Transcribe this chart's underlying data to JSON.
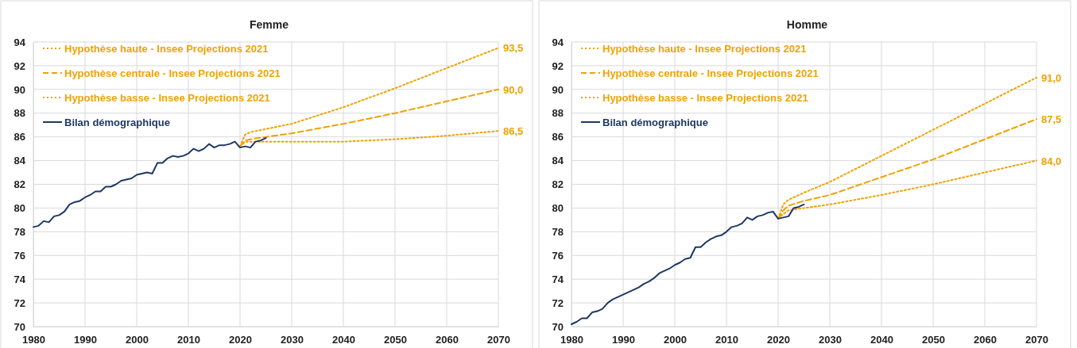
{
  "chart_data": [
    {
      "type": "line",
      "title": "Femme",
      "xlim": [
        1980,
        2070
      ],
      "xticks": [
        1980,
        1990,
        2000,
        2010,
        2020,
        2030,
        2040,
        2050,
        2060,
        2070
      ],
      "ylim": [
        70,
        94
      ],
      "yticks": [
        70,
        72,
        74,
        76,
        78,
        80,
        82,
        84,
        86,
        88,
        90,
        92,
        94
      ],
      "grid": true,
      "legend": "top left",
      "marker": "none",
      "series": [
        {
          "name": "Hypothèse haute - Insee Projections 2021",
          "color": "#f0a202",
          "line_style": "dotted",
          "x": [
            2020,
            2021,
            2022,
            2030,
            2040,
            2050,
            2060,
            2070
          ],
          "values": [
            85.2,
            86.2,
            86.4,
            87.1,
            88.5,
            90.1,
            91.8,
            93.5
          ],
          "value_labels": [
            null,
            null,
            null,
            null,
            null,
            null,
            null,
            "93,5"
          ]
        },
        {
          "name": "Hypothèse centrale - Insee Projections 2021",
          "color": "#f0a202",
          "line_style": "dashed",
          "x": [
            2020,
            2021,
            2022,
            2025,
            2030,
            2040,
            2050,
            2060,
            2070
          ],
          "values": [
            85.2,
            85.7,
            85.8,
            86.0,
            86.3,
            87.1,
            88.0,
            89.0,
            90.0
          ],
          "value_labels": [
            null,
            null,
            null,
            null,
            null,
            null,
            null,
            null,
            "90,0"
          ]
        },
        {
          "name": "Hypothèse basse - Insee Projections 2021",
          "color": "#f0a202",
          "line_style": "dotted",
          "x": [
            2020,
            2021,
            2022,
            2030,
            2040,
            2050,
            2060,
            2070
          ],
          "values": [
            85.2,
            85.6,
            85.6,
            85.6,
            85.6,
            85.8,
            86.1,
            86.5
          ],
          "value_labels": [
            null,
            null,
            null,
            null,
            null,
            null,
            null,
            "86,5"
          ]
        },
        {
          "name": "Bilan démographique",
          "color": "#1f3864",
          "line_style": "solid",
          "x": [
            1980,
            1981,
            1982,
            1983,
            1984,
            1985,
            1986,
            1987,
            1988,
            1989,
            1990,
            1991,
            1992,
            1993,
            1994,
            1995,
            1996,
            1997,
            1998,
            1999,
            2000,
            2001,
            2002,
            2003,
            2004,
            2005,
            2006,
            2007,
            2008,
            2009,
            2010,
            2011,
            2012,
            2013,
            2014,
            2015,
            2016,
            2017,
            2018,
            2019,
            2020,
            2021,
            2022,
            2023,
            2024,
            2025
          ],
          "values": [
            78.4,
            78.5,
            78.9,
            78.8,
            79.3,
            79.4,
            79.7,
            80.3,
            80.5,
            80.6,
            80.9,
            81.1,
            81.4,
            81.4,
            81.8,
            81.8,
            82.0,
            82.3,
            82.4,
            82.5,
            82.8,
            82.9,
            83.0,
            82.9,
            83.8,
            83.8,
            84.2,
            84.4,
            84.3,
            84.4,
            84.6,
            85.0,
            84.8,
            85.0,
            85.4,
            85.1,
            85.3,
            85.3,
            85.4,
            85.6,
            85.1,
            85.2,
            85.1,
            85.6,
            85.7,
            85.9
          ]
        }
      ]
    },
    {
      "type": "line",
      "title": "Homme",
      "xlim": [
        1980,
        2070
      ],
      "xticks": [
        1980,
        1990,
        2000,
        2010,
        2020,
        2030,
        2040,
        2050,
        2060,
        2070
      ],
      "ylim": [
        70,
        94
      ],
      "yticks": [
        70,
        72,
        74,
        76,
        78,
        80,
        82,
        84,
        86,
        88,
        90,
        92,
        94
      ],
      "grid": true,
      "legend": "top left",
      "marker": "none",
      "series": [
        {
          "name": "Hypothèse haute - Insee Projections 2021",
          "color": "#f0a202",
          "line_style": "dotted",
          "x": [
            2020,
            2021,
            2022,
            2025,
            2030,
            2040,
            2050,
            2060,
            2070
          ],
          "values": [
            79.1,
            80.3,
            80.7,
            81.3,
            82.2,
            84.4,
            86.6,
            88.8,
            91.0
          ],
          "value_labels": [
            null,
            null,
            null,
            null,
            null,
            null,
            null,
            null,
            "91,0"
          ]
        },
        {
          "name": "Hypothèse centrale - Insee Projections 2021",
          "color": "#f0a202",
          "line_style": "dashed",
          "x": [
            2020,
            2021,
            2022,
            2025,
            2030,
            2040,
            2050,
            2060,
            2070
          ],
          "values": [
            79.1,
            79.8,
            80.2,
            80.6,
            81.1,
            82.6,
            84.1,
            85.8,
            87.5
          ],
          "value_labels": [
            null,
            null,
            null,
            null,
            null,
            null,
            null,
            null,
            "87,5"
          ]
        },
        {
          "name": "Hypothèse basse - Insee Projections 2021",
          "color": "#f0a202",
          "line_style": "dotted",
          "x": [
            2020,
            2021,
            2022,
            2025,
            2030,
            2040,
            2050,
            2060,
            2070
          ],
          "values": [
            79.1,
            79.5,
            79.8,
            80.0,
            80.3,
            81.1,
            82.0,
            83.0,
            84.0
          ],
          "value_labels": [
            null,
            null,
            null,
            null,
            null,
            null,
            null,
            null,
            "84,0"
          ]
        },
        {
          "name": "Bilan démographique",
          "color": "#1f3864",
          "line_style": "solid",
          "x": [
            1980,
            1981,
            1982,
            1983,
            1984,
            1985,
            1986,
            1987,
            1988,
            1989,
            1990,
            1991,
            1992,
            1993,
            1994,
            1995,
            1996,
            1997,
            1998,
            1999,
            2000,
            2001,
            2002,
            2003,
            2004,
            2005,
            2006,
            2007,
            2008,
            2009,
            2010,
            2011,
            2012,
            2013,
            2014,
            2015,
            2016,
            2017,
            2018,
            2019,
            2020,
            2021,
            2022,
            2023,
            2024,
            2025
          ],
          "values": [
            70.2,
            70.4,
            70.7,
            70.7,
            71.2,
            71.3,
            71.5,
            72.0,
            72.3,
            72.5,
            72.7,
            72.9,
            73.1,
            73.3,
            73.6,
            73.8,
            74.1,
            74.5,
            74.7,
            74.9,
            75.2,
            75.4,
            75.7,
            75.8,
            76.7,
            76.7,
            77.1,
            77.4,
            77.6,
            77.7,
            78.0,
            78.4,
            78.5,
            78.7,
            79.2,
            79.0,
            79.3,
            79.4,
            79.6,
            79.7,
            79.1,
            79.2,
            79.3,
            80.0,
            80.1,
            80.3
          ]
        }
      ]
    }
  ]
}
